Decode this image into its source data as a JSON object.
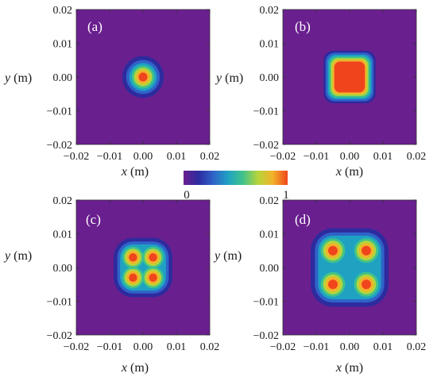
{
  "chart_data": [
    {
      "type": "heatmap",
      "panel_label": "(a)",
      "xlabel": {
        "var": "x",
        "unit": " (m)"
      },
      "ylabel": {
        "var": "y",
        "unit": " (m)"
      },
      "xlim": [
        -0.02,
        0.02
      ],
      "ylim": [
        -0.02,
        0.02
      ],
      "x_ticks": [
        "−0.02",
        "−0.01",
        "0.00",
        "0.01",
        "0.02"
      ],
      "y_ticks": [
        "0.02",
        "0.01",
        "0.00",
        "−0.01",
        "−0.02"
      ],
      "colorbar_range": [
        0,
        1
      ],
      "peaks": [
        {
          "x": 0.0,
          "y": 0.0,
          "value": 1.0
        }
      ]
    },
    {
      "type": "heatmap",
      "panel_label": "(b)",
      "xlabel": {
        "var": "x",
        "unit": " (m)"
      },
      "ylabel": {
        "var": "y",
        "unit": " (m)"
      },
      "xlim": [
        -0.02,
        0.02
      ],
      "ylim": [
        -0.02,
        0.02
      ],
      "x_ticks": [
        "−0.02",
        "−0.01",
        "0.00",
        "0.01",
        "0.02"
      ],
      "y_ticks": [
        "0.02",
        "0.01",
        "0.00",
        "−0.01",
        "−0.02"
      ],
      "colorbar_range": [
        0,
        1
      ],
      "peaks": [
        {
          "x": 0.0,
          "y": 0.0,
          "value": 1.0
        }
      ]
    },
    {
      "type": "heatmap",
      "panel_label": "(c)",
      "xlabel": {
        "var": "x",
        "unit": " (m)"
      },
      "ylabel": {
        "var": "y",
        "unit": " (m)"
      },
      "xlim": [
        -0.02,
        0.02
      ],
      "ylim": [
        -0.02,
        0.02
      ],
      "x_ticks": [
        "−0.02",
        "−0.01",
        "0.00",
        "0.01",
        "0.02"
      ],
      "y_ticks": [
        "0.02",
        "0.01",
        "0.00",
        "−0.01",
        "−0.02"
      ],
      "colorbar_range": [
        0,
        1
      ],
      "peaks": [
        {
          "x": -0.003,
          "y": 0.003,
          "value": 1.0
        },
        {
          "x": 0.003,
          "y": 0.003,
          "value": 1.0
        },
        {
          "x": -0.003,
          "y": -0.003,
          "value": 1.0
        },
        {
          "x": 0.003,
          "y": -0.003,
          "value": 1.0
        }
      ]
    },
    {
      "type": "heatmap",
      "panel_label": "(d)",
      "xlabel": {
        "var": "x",
        "unit": " (m)"
      },
      "ylabel": {
        "var": "y",
        "unit": " (m)"
      },
      "xlim": [
        -0.02,
        0.02
      ],
      "ylim": [
        -0.02,
        0.02
      ],
      "x_ticks": [
        "−0.02",
        "−0.01",
        "0.00",
        "0.01",
        "0.02"
      ],
      "y_ticks": [
        "0.02",
        "0.01",
        "0.00",
        "−0.01",
        "−0.02"
      ],
      "colorbar_range": [
        0,
        1
      ],
      "peaks": [
        {
          "x": -0.005,
          "y": 0.005,
          "value": 1.0
        },
        {
          "x": 0.005,
          "y": 0.005,
          "value": 1.0
        },
        {
          "x": -0.005,
          "y": -0.005,
          "value": 1.0
        },
        {
          "x": 0.005,
          "y": -0.005,
          "value": 1.0
        }
      ]
    }
  ],
  "colorbar": {
    "min_label": "0",
    "max_label": "1",
    "colors": [
      "#6a1f8f",
      "#2d2b9e",
      "#2f63c9",
      "#1fa2c2",
      "#42c38a",
      "#b6d43b",
      "#f2b32a",
      "#f0451c"
    ]
  }
}
